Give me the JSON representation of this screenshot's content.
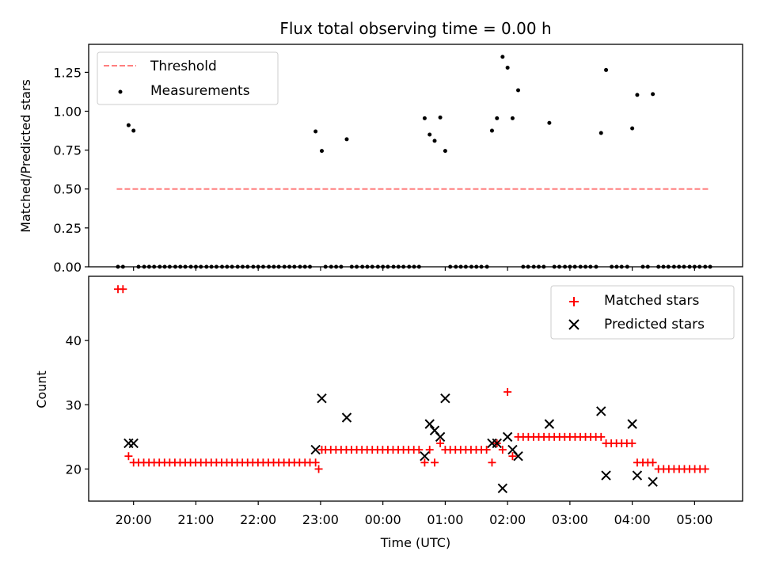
{
  "figure": {
    "title": "Flux total observing time = 0.00 h",
    "xlabel": "Time (UTC)",
    "xticks": [
      "20:00",
      "21:00",
      "22:00",
      "23:00",
      "00:00",
      "01:00",
      "02:00",
      "03:00",
      "04:00",
      "05:00"
    ]
  },
  "chart_data": [
    {
      "type": "scatter",
      "panel": "top",
      "xlabel": "",
      "ylabel": "Matched/Predicted stars",
      "x_unit": "hours after 20:00 UTC",
      "xlim": [
        -0.72,
        9.77
      ],
      "ylim": [
        0,
        1.43
      ],
      "yticks": [
        "0.00",
        "0.25",
        "0.50",
        "0.75",
        "1.00",
        "1.25"
      ],
      "legend": {
        "position": "top-left",
        "entries": [
          "Threshold",
          "Measurements"
        ]
      },
      "grid": false,
      "series": [
        {
          "name": "Threshold",
          "kind": "line",
          "style": "dashed",
          "color": "#ff7f7f",
          "x": [
            -0.27,
            9.25
          ],
          "y": [
            0.5,
            0.5
          ]
        },
        {
          "name": "Measurements",
          "kind": "scatter",
          "color": "#000000",
          "points": [
            [
              -0.25,
              0.0
            ],
            [
              -0.17,
              0.0
            ],
            [
              -0.08,
              0.91
            ],
            [
              0.0,
              0.875
            ],
            [
              0.08,
              0
            ],
            [
              0.17,
              0
            ],
            [
              0.25,
              0
            ],
            [
              0.33,
              0
            ],
            [
              0.42,
              0
            ],
            [
              0.5,
              0
            ],
            [
              0.58,
              0
            ],
            [
              0.67,
              0
            ],
            [
              0.75,
              0
            ],
            [
              0.83,
              0
            ],
            [
              0.92,
              0
            ],
            [
              1.0,
              0
            ],
            [
              1.08,
              0
            ],
            [
              1.17,
              0
            ],
            [
              1.25,
              0
            ],
            [
              1.33,
              0
            ],
            [
              1.42,
              0
            ],
            [
              1.5,
              0
            ],
            [
              1.58,
              0
            ],
            [
              1.67,
              0
            ],
            [
              1.75,
              0
            ],
            [
              1.83,
              0
            ],
            [
              1.92,
              0
            ],
            [
              2.0,
              0
            ],
            [
              2.08,
              0
            ],
            [
              2.17,
              0
            ],
            [
              2.25,
              0
            ],
            [
              2.33,
              0
            ],
            [
              2.42,
              0
            ],
            [
              2.5,
              0
            ],
            [
              2.58,
              0
            ],
            [
              2.67,
              0
            ],
            [
              2.75,
              0
            ],
            [
              2.83,
              0
            ],
            [
              2.92,
              0.87
            ],
            [
              3.02,
              0.745
            ],
            [
              3.08,
              0
            ],
            [
              3.17,
              0
            ],
            [
              3.25,
              0
            ],
            [
              3.33,
              0
            ],
            [
              3.42,
              0.82
            ],
            [
              3.5,
              0
            ],
            [
              3.58,
              0
            ],
            [
              3.67,
              0
            ],
            [
              3.75,
              0
            ],
            [
              3.83,
              0
            ],
            [
              3.92,
              0
            ],
            [
              4.0,
              0
            ],
            [
              4.08,
              0
            ],
            [
              4.17,
              0
            ],
            [
              4.25,
              0
            ],
            [
              4.33,
              0
            ],
            [
              4.42,
              0
            ],
            [
              4.5,
              0
            ],
            [
              4.58,
              0
            ],
            [
              4.67,
              0.955
            ],
            [
              4.75,
              0.85
            ],
            [
              4.83,
              0.81
            ],
            [
              4.92,
              0.96
            ],
            [
              5.0,
              0.745
            ],
            [
              5.08,
              0
            ],
            [
              5.17,
              0
            ],
            [
              5.25,
              0
            ],
            [
              5.33,
              0
            ],
            [
              5.42,
              0
            ],
            [
              5.5,
              0
            ],
            [
              5.58,
              0
            ],
            [
              5.67,
              0
            ],
            [
              5.75,
              0.875
            ],
            [
              5.83,
              0.955
            ],
            [
              5.92,
              1.35
            ],
            [
              6.0,
              1.28
            ],
            [
              6.08,
              0.955
            ],
            [
              6.17,
              1.135
            ],
            [
              6.25,
              0
            ],
            [
              6.33,
              0
            ],
            [
              6.42,
              0
            ],
            [
              6.5,
              0
            ],
            [
              6.58,
              0
            ],
            [
              6.67,
              0.925
            ],
            [
              6.75,
              0
            ],
            [
              6.83,
              0
            ],
            [
              6.92,
              0
            ],
            [
              7.0,
              0
            ],
            [
              7.08,
              0
            ],
            [
              7.17,
              0
            ],
            [
              7.25,
              0
            ],
            [
              7.33,
              0
            ],
            [
              7.42,
              0
            ],
            [
              7.5,
              0.86
            ],
            [
              7.58,
              1.265
            ],
            [
              7.67,
              0
            ],
            [
              7.75,
              0
            ],
            [
              7.83,
              0
            ],
            [
              7.92,
              0
            ],
            [
              8.0,
              0.89
            ],
            [
              8.08,
              1.105
            ],
            [
              8.17,
              0
            ],
            [
              8.25,
              0
            ],
            [
              8.33,
              1.11
            ],
            [
              8.42,
              0
            ],
            [
              8.5,
              0
            ],
            [
              8.58,
              0
            ],
            [
              8.67,
              0
            ],
            [
              8.75,
              0
            ],
            [
              8.83,
              0
            ],
            [
              8.92,
              0
            ],
            [
              9.0,
              0
            ],
            [
              9.08,
              0
            ],
            [
              9.17,
              0
            ],
            [
              9.25,
              0
            ]
          ]
        }
      ]
    },
    {
      "type": "scatter",
      "panel": "bottom",
      "xlabel": "Time (UTC)",
      "ylabel": "Count",
      "x_unit": "hours after 20:00 UTC",
      "xlim": [
        -0.72,
        9.77
      ],
      "ylim": [
        15,
        50
      ],
      "yticks": [
        "20",
        "30",
        "40"
      ],
      "legend": {
        "position": "top-right",
        "entries": [
          "Matched stars",
          "Predicted stars"
        ]
      },
      "grid": false,
      "series": [
        {
          "name": "Matched stars",
          "marker": "plus",
          "color": "#ff0000",
          "runs": [
            {
              "from": 0.08,
              "to": 2.67,
              "step": 0.0833,
              "y": 21
            },
            {
              "from": 3.08,
              "to": 4.58,
              "step": 0.0833,
              "y": 23
            },
            {
              "from": 5.08,
              "to": 5.67,
              "step": 0.0833,
              "y": 23
            },
            {
              "from": 6.25,
              "to": 7.42,
              "step": 0.0833,
              "y": 25
            },
            {
              "from": 7.58,
              "to": 8.0,
              "step": 0.0833,
              "y": 24
            },
            {
              "from": 8.42,
              "to": 9.25,
              "step": 0.0833,
              "y": 20
            }
          ],
          "points": [
            [
              -0.25,
              48
            ],
            [
              -0.17,
              48
            ],
            [
              -0.08,
              22
            ],
            [
              0.0,
              21
            ],
            [
              2.75,
              21
            ],
            [
              2.83,
              21
            ],
            [
              2.92,
              21
            ],
            [
              2.97,
              20
            ],
            [
              3.02,
              23
            ],
            [
              4.67,
              21
            ],
            [
              4.75,
              23
            ],
            [
              4.83,
              21
            ],
            [
              4.92,
              24
            ],
            [
              5.0,
              23
            ],
            [
              5.75,
              21
            ],
            [
              5.83,
              24
            ],
            [
              5.92,
              23
            ],
            [
              6.0,
              32
            ],
            [
              6.08,
              22
            ],
            [
              6.17,
              25
            ],
            [
              7.5,
              25
            ],
            [
              8.08,
              21
            ],
            [
              8.17,
              21
            ],
            [
              8.25,
              21
            ],
            [
              8.33,
              21
            ]
          ]
        },
        {
          "name": "Predicted stars",
          "marker": "x",
          "color": "#000000",
          "points": [
            [
              -0.08,
              24
            ],
            [
              0.0,
              24
            ],
            [
              2.92,
              23
            ],
            [
              3.02,
              31
            ],
            [
              3.42,
              28
            ],
            [
              4.67,
              22
            ],
            [
              4.75,
              27
            ],
            [
              4.83,
              26
            ],
            [
              4.92,
              25
            ],
            [
              5.0,
              31
            ],
            [
              5.75,
              24
            ],
            [
              5.83,
              24
            ],
            [
              5.92,
              17
            ],
            [
              6.0,
              25
            ],
            [
              6.08,
              23
            ],
            [
              6.17,
              22
            ],
            [
              6.67,
              27
            ],
            [
              7.5,
              29
            ],
            [
              7.58,
              19
            ],
            [
              8.0,
              27
            ],
            [
              8.08,
              19
            ],
            [
              8.33,
              18
            ]
          ]
        }
      ]
    }
  ]
}
